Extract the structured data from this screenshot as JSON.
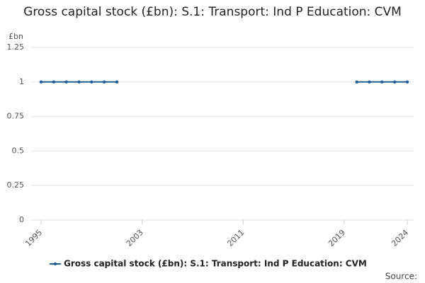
{
  "chart_data": {
    "type": "line",
    "title": "Gross capital stock (£bn): S.1: Transport: Ind P Education: CVM",
    "y_label": "£bn",
    "source_label": "Source:",
    "x": [
      1995,
      1996,
      1997,
      1998,
      1999,
      2000,
      2001,
      2002,
      2003,
      2004,
      2005,
      2006,
      2007,
      2008,
      2009,
      2010,
      2011,
      2012,
      2013,
      2014,
      2015,
      2016,
      2017,
      2018,
      2019,
      2020,
      2021,
      2022,
      2023,
      2024
    ],
    "series": [
      {
        "name": "Gross capital stock (£bn): S.1: Transport: Ind P Education: CVM",
        "color": "#206095",
        "values": [
          1,
          1,
          1,
          1,
          1,
          1,
          1,
          null,
          null,
          null,
          null,
          null,
          null,
          null,
          null,
          null,
          null,
          null,
          null,
          null,
          null,
          null,
          null,
          null,
          null,
          1,
          1,
          1,
          1,
          1
        ]
      }
    ],
    "xlim": [
      1995,
      2024
    ],
    "xticks": [
      1995,
      2003,
      2011,
      2019,
      2024
    ],
    "ylim": [
      0,
      1.25
    ],
    "yticks": [
      0,
      0.25,
      0.5,
      0.75,
      1,
      1.25
    ],
    "grid": true
  }
}
